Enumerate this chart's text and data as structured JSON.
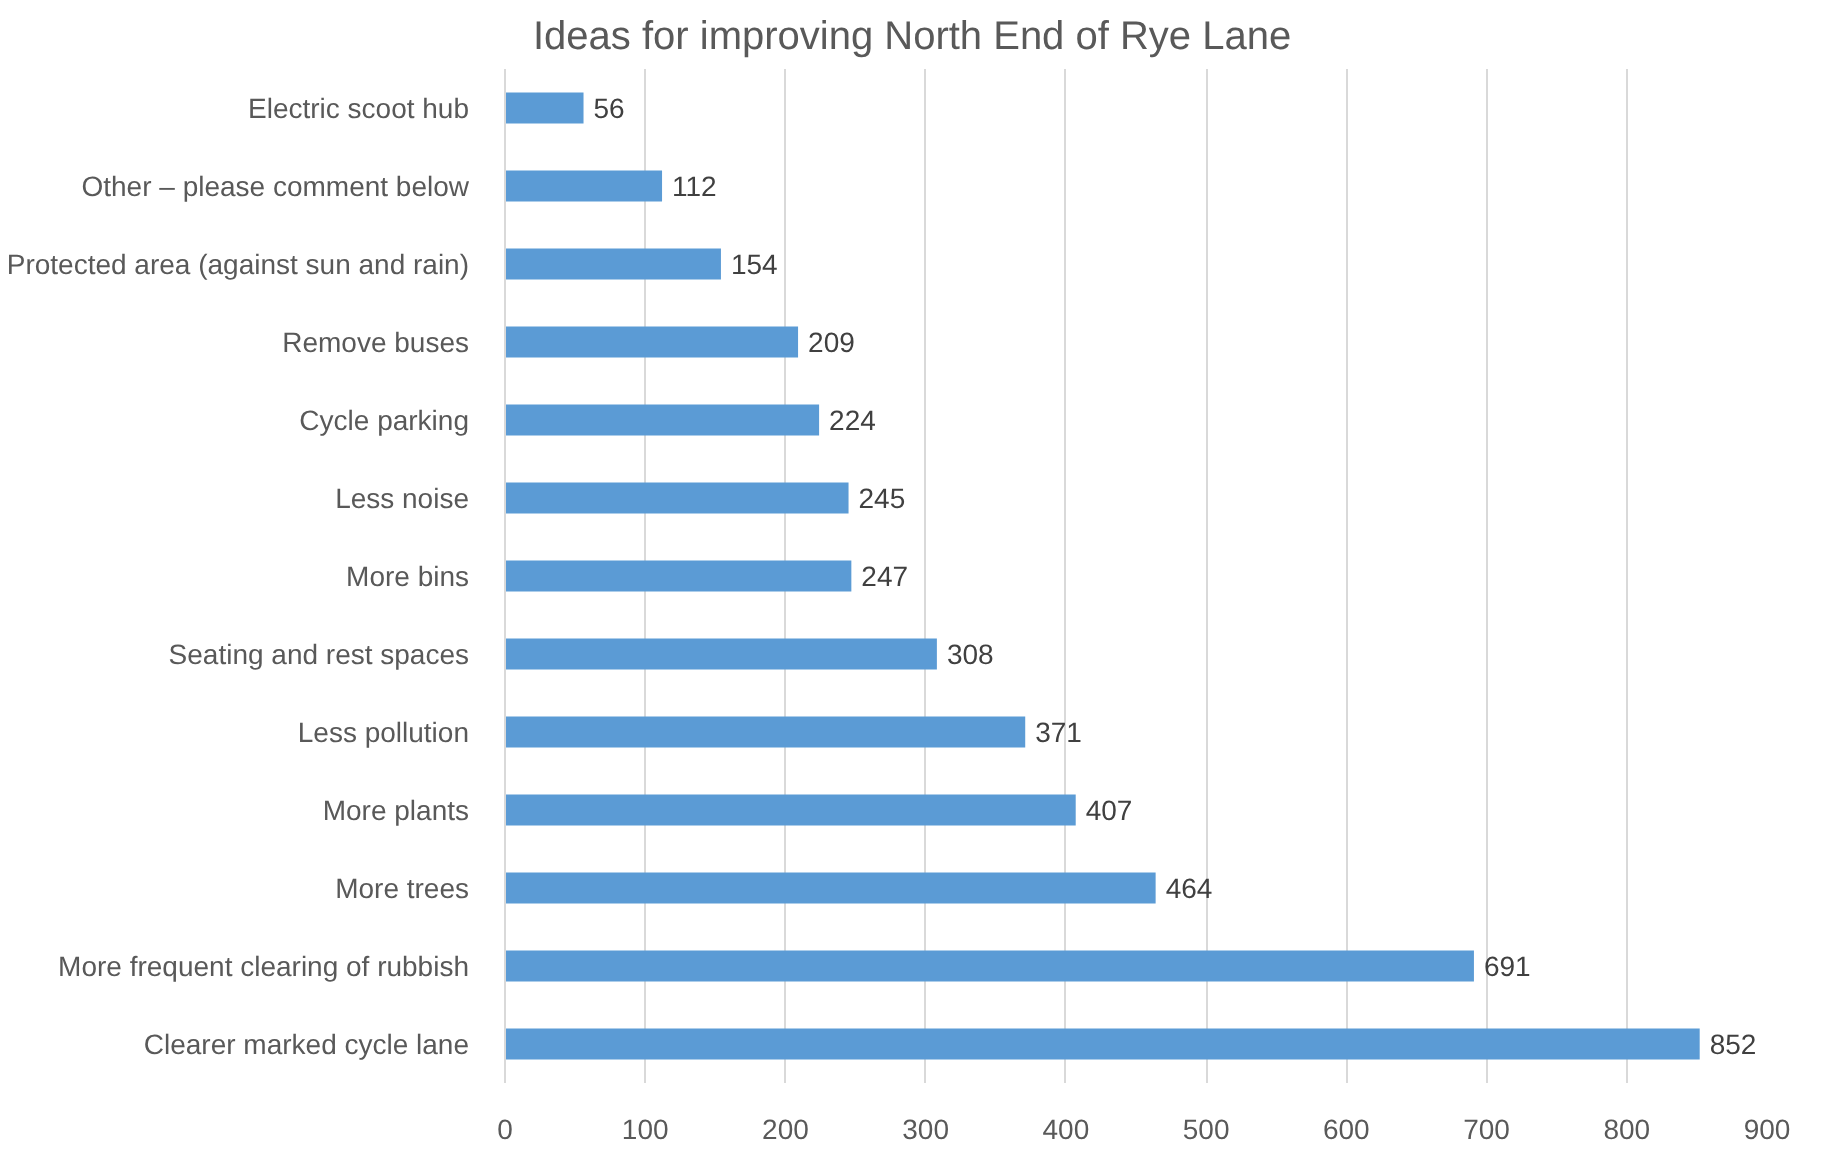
{
  "chart_data": {
    "type": "bar",
    "orientation": "horizontal",
    "title": "Ideas for improving North End of Rye Lane",
    "categories": [
      "Electric scoot hub",
      "Other – please comment below",
      "Protected area (against sun and rain)",
      "Remove buses",
      "Cycle parking",
      "Less noise",
      "More bins",
      "Seating and rest spaces",
      "Less pollution",
      "More plants",
      "More trees",
      "More frequent clearing of rubbish",
      "Clearer marked cycle lane"
    ],
    "values": [
      56,
      112,
      154,
      209,
      224,
      245,
      247,
      308,
      371,
      407,
      464,
      691,
      852
    ],
    "color": "#5b9bd5",
    "xlim": [
      0,
      900
    ],
    "xticks": [
      0,
      100,
      200,
      300,
      400,
      500,
      600,
      700,
      800,
      900
    ],
    "grid": "x",
    "data_labels": true
  }
}
